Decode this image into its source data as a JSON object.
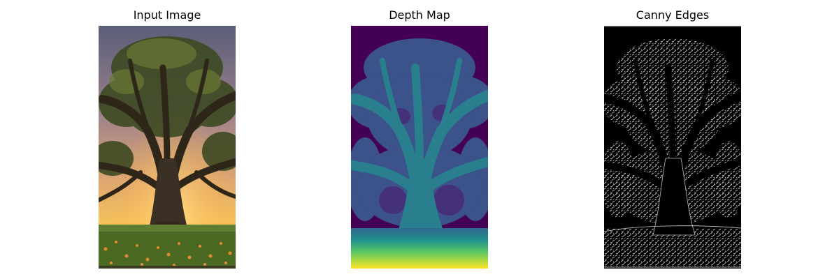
{
  "panels": [
    {
      "title": "Input Image",
      "image": "photo of a large old oak tree at sunset with orange wildflowers"
    },
    {
      "title": "Depth Map",
      "image": "viridis-colored depth estimation of the tree"
    },
    {
      "title": "Canny Edges",
      "image": "white edge lines on black background"
    }
  ],
  "colors": {
    "viridis_dark": "#440154",
    "viridis_blue": "#3b528b",
    "viridis_teal": "#21918c",
    "viridis_green": "#5ec962",
    "viridis_yellow": "#fde725"
  }
}
